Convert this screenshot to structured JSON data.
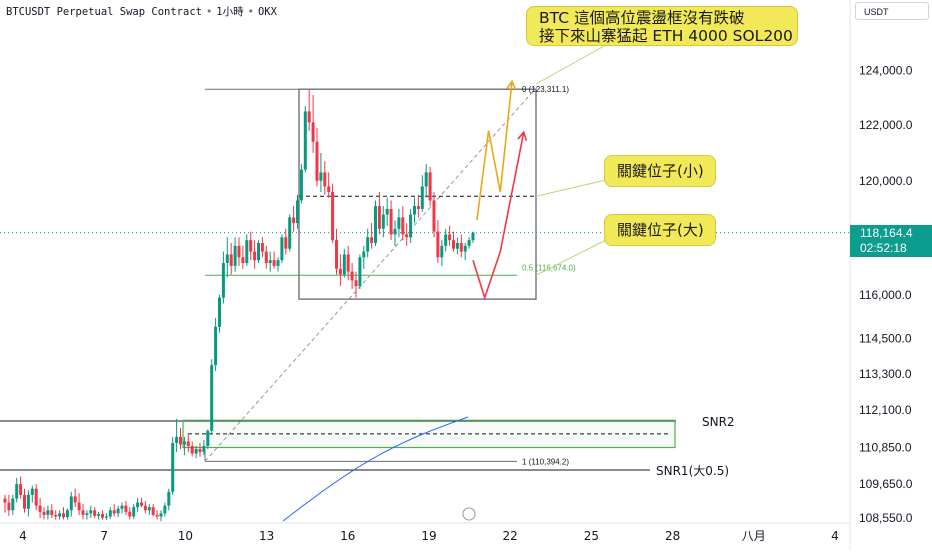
{
  "header": {
    "symbol": "BTCUSDT Perpetual Swap Contract",
    "timeframe": "1小時",
    "exchange": "OKX",
    "currency_unit": "USDT"
  },
  "last_price": {
    "value": "118,164.4",
    "countdown": "02:52:18",
    "color": "#0d9d8e"
  },
  "notes": {
    "main_line1": "BTC 這個高位震盪框沒有跌破",
    "main_line2": "接下來山寨猛起 ETH 4000 SOL200",
    "key_small": "關鍵位子(小)",
    "key_large": "關鍵位子(大)"
  },
  "levels": {
    "fib_0": "0 (123,311.1)",
    "fib_05": "0.5 (116,674.0)",
    "fib_1": "1 (110,394.2)",
    "snr2": "SNR2",
    "snr1": "SNR1(大0.5)"
  },
  "colors": {
    "up": "#089981",
    "down": "#f23645",
    "accent": "#2962ff",
    "note_bg": "#f2e959",
    "projection_yellow": "#e8a817",
    "projection_red": "#f23645"
  },
  "chart_data": {
    "type": "candlestick",
    "x_tick_labels": [
      "4",
      "7",
      "10",
      "13",
      "16",
      "19",
      "22",
      "25",
      "28",
      "八月",
      "4"
    ],
    "y_tick_labels": [
      "124,000.0",
      "122,000.0",
      "120,000.0",
      "116,000.0",
      "114,500.0",
      "113,300.0",
      "112,100.0",
      "110,850.0",
      "109,650.0",
      "108,550.0"
    ],
    "y_scale": "log",
    "ylim": [
      108300,
      125400
    ],
    "last_price": 118164.4,
    "fib_levels": [
      {
        "level": "0",
        "price": 123311.1
      },
      {
        "level": "0.5",
        "price": 116674.0
      },
      {
        "level": "1",
        "price": 110394.2
      }
    ],
    "key_levels": {
      "small": 119450,
      "large": 116674
    },
    "range_box": {
      "high": 123311,
      "low": 115850
    },
    "snr2_zone": {
      "high": 111750,
      "low": 110850,
      "mid": 111300
    },
    "snr1_level": 109900,
    "candles": [
      {
        "o": 109180,
        "h": 109300,
        "l": 108720,
        "c": 109050
      },
      {
        "o": 109050,
        "h": 109300,
        "l": 108620,
        "c": 108800
      },
      {
        "o": 108800,
        "h": 109300,
        "l": 108650,
        "c": 109180
      },
      {
        "o": 109180,
        "h": 109850,
        "l": 109050,
        "c": 109650
      },
      {
        "o": 109650,
        "h": 109900,
        "l": 109180,
        "c": 109300
      },
      {
        "o": 109300,
        "h": 109500,
        "l": 108720,
        "c": 108850
      },
      {
        "o": 108850,
        "h": 109450,
        "l": 108600,
        "c": 109300
      },
      {
        "o": 109300,
        "h": 109600,
        "l": 109050,
        "c": 109500
      },
      {
        "o": 109500,
        "h": 109650,
        "l": 108800,
        "c": 108950
      },
      {
        "o": 108950,
        "h": 109200,
        "l": 108550,
        "c": 108750
      },
      {
        "o": 108750,
        "h": 108900,
        "l": 108500,
        "c": 108650
      },
      {
        "o": 108650,
        "h": 108950,
        "l": 108500,
        "c": 108800
      },
      {
        "o": 108800,
        "h": 109000,
        "l": 108550,
        "c": 108650
      },
      {
        "o": 108650,
        "h": 108800,
        "l": 108500,
        "c": 108600
      },
      {
        "o": 108600,
        "h": 108800,
        "l": 108500,
        "c": 108700
      },
      {
        "o": 108700,
        "h": 108900,
        "l": 108500,
        "c": 108580
      },
      {
        "o": 108580,
        "h": 108850,
        "l": 108500,
        "c": 108800
      },
      {
        "o": 108800,
        "h": 109400,
        "l": 108600,
        "c": 109250
      },
      {
        "o": 109250,
        "h": 109500,
        "l": 108900,
        "c": 109050
      },
      {
        "o": 109050,
        "h": 109350,
        "l": 108650,
        "c": 108800
      },
      {
        "o": 108800,
        "h": 109000,
        "l": 108500,
        "c": 108650
      },
      {
        "o": 108650,
        "h": 108800,
        "l": 108500,
        "c": 108700
      },
      {
        "o": 108700,
        "h": 108950,
        "l": 108550,
        "c": 108800
      },
      {
        "o": 108800,
        "h": 108900,
        "l": 108550,
        "c": 108620
      },
      {
        "o": 108620,
        "h": 108750,
        "l": 108500,
        "c": 108680
      },
      {
        "o": 108680,
        "h": 108800,
        "l": 108500,
        "c": 108560
      },
      {
        "o": 108560,
        "h": 108700,
        "l": 108480,
        "c": 108600
      },
      {
        "o": 108600,
        "h": 108900,
        "l": 108520,
        "c": 108800
      },
      {
        "o": 108800,
        "h": 109000,
        "l": 108600,
        "c": 108700
      },
      {
        "o": 108700,
        "h": 108950,
        "l": 108580,
        "c": 108850
      },
      {
        "o": 108850,
        "h": 109050,
        "l": 108700,
        "c": 108950
      },
      {
        "o": 108950,
        "h": 109100,
        "l": 108650,
        "c": 108750
      },
      {
        "o": 108750,
        "h": 108900,
        "l": 108500,
        "c": 108600
      },
      {
        "o": 108600,
        "h": 109000,
        "l": 108520,
        "c": 108900
      },
      {
        "o": 108900,
        "h": 109200,
        "l": 108750,
        "c": 109050
      },
      {
        "o": 109050,
        "h": 109200,
        "l": 108900,
        "c": 108950
      },
      {
        "o": 108950,
        "h": 109100,
        "l": 108700,
        "c": 108800
      },
      {
        "o": 108800,
        "h": 109000,
        "l": 108650,
        "c": 108900
      },
      {
        "o": 108900,
        "h": 109000,
        "l": 108600,
        "c": 108650
      },
      {
        "o": 108650,
        "h": 108800,
        "l": 108500,
        "c": 108600
      },
      {
        "o": 108600,
        "h": 108800,
        "l": 108450,
        "c": 108700
      },
      {
        "o": 108700,
        "h": 109050,
        "l": 108600,
        "c": 108950
      },
      {
        "o": 108950,
        "h": 109500,
        "l": 108800,
        "c": 109400
      },
      {
        "o": 109400,
        "h": 111200,
        "l": 109300,
        "c": 111000
      },
      {
        "o": 111000,
        "h": 111800,
        "l": 110700,
        "c": 111200
      },
      {
        "o": 111200,
        "h": 111500,
        "l": 110800,
        "c": 110950
      },
      {
        "o": 110950,
        "h": 111200,
        "l": 110600,
        "c": 111050
      },
      {
        "o": 111050,
        "h": 111300,
        "l": 110700,
        "c": 110900
      },
      {
        "o": 110900,
        "h": 111050,
        "l": 110550,
        "c": 110650
      },
      {
        "o": 110650,
        "h": 110900,
        "l": 110500,
        "c": 110800
      },
      {
        "o": 110800,
        "h": 111000,
        "l": 110550,
        "c": 110700
      },
      {
        "o": 110700,
        "h": 111100,
        "l": 110600,
        "c": 110900
      },
      {
        "o": 110900,
        "h": 111450,
        "l": 110800,
        "c": 111400
      },
      {
        "o": 111400,
        "h": 113800,
        "l": 111300,
        "c": 113600
      },
      {
        "o": 113600,
        "h": 115200,
        "l": 113400,
        "c": 114900
      },
      {
        "o": 114900,
        "h": 116000,
        "l": 114700,
        "c": 115900
      },
      {
        "o": 115900,
        "h": 117500,
        "l": 115700,
        "c": 117100
      },
      {
        "o": 117100,
        "h": 118000,
        "l": 116600,
        "c": 117400
      },
      {
        "o": 117400,
        "h": 117800,
        "l": 116700,
        "c": 117000
      },
      {
        "o": 117000,
        "h": 118000,
        "l": 116800,
        "c": 117700
      },
      {
        "o": 117700,
        "h": 118000,
        "l": 117000,
        "c": 117300
      },
      {
        "o": 117300,
        "h": 117700,
        "l": 116900,
        "c": 117100
      },
      {
        "o": 117100,
        "h": 118100,
        "l": 117000,
        "c": 117900
      },
      {
        "o": 117900,
        "h": 118200,
        "l": 117200,
        "c": 117500
      },
      {
        "o": 117500,
        "h": 117900,
        "l": 116900,
        "c": 117200
      },
      {
        "o": 117200,
        "h": 117900,
        "l": 117100,
        "c": 117800
      },
      {
        "o": 117800,
        "h": 118000,
        "l": 117300,
        "c": 117500
      },
      {
        "o": 117500,
        "h": 117700,
        "l": 116900,
        "c": 117100
      },
      {
        "o": 117100,
        "h": 117500,
        "l": 116800,
        "c": 117200
      },
      {
        "o": 117200,
        "h": 117500,
        "l": 116900,
        "c": 117000
      },
      {
        "o": 117000,
        "h": 117300,
        "l": 116800,
        "c": 117200
      },
      {
        "o": 117200,
        "h": 118100,
        "l": 117100,
        "c": 118000
      },
      {
        "o": 118000,
        "h": 118300,
        "l": 117400,
        "c": 117600
      },
      {
        "o": 117600,
        "h": 118800,
        "l": 117500,
        "c": 118700
      },
      {
        "o": 118700,
        "h": 119100,
        "l": 118200,
        "c": 118500
      },
      {
        "o": 118500,
        "h": 119500,
        "l": 118300,
        "c": 119300
      },
      {
        "o": 119300,
        "h": 120600,
        "l": 119200,
        "c": 120400
      },
      {
        "o": 120400,
        "h": 122700,
        "l": 120300,
        "c": 122500
      },
      {
        "o": 122500,
        "h": 123300,
        "l": 121800,
        "c": 122100
      },
      {
        "o": 122100,
        "h": 123100,
        "l": 121000,
        "c": 121400
      },
      {
        "o": 121400,
        "h": 121900,
        "l": 119800,
        "c": 120000
      },
      {
        "o": 120000,
        "h": 121000,
        "l": 119600,
        "c": 120300
      },
      {
        "o": 120300,
        "h": 120700,
        "l": 119500,
        "c": 119800
      },
      {
        "o": 119800,
        "h": 120300,
        "l": 119400,
        "c": 119600
      },
      {
        "o": 119600,
        "h": 119900,
        "l": 117800,
        "c": 117900
      },
      {
        "o": 117900,
        "h": 118300,
        "l": 116700,
        "c": 116900
      },
      {
        "o": 116900,
        "h": 117400,
        "l": 116300,
        "c": 116700
      },
      {
        "o": 116700,
        "h": 117600,
        "l": 116600,
        "c": 117400
      },
      {
        "o": 117400,
        "h": 117700,
        "l": 116500,
        "c": 116800
      },
      {
        "o": 116800,
        "h": 117100,
        "l": 116200,
        "c": 116500
      },
      {
        "o": 116500,
        "h": 116800,
        "l": 115900,
        "c": 116300
      },
      {
        "o": 116300,
        "h": 117400,
        "l": 116200,
        "c": 117300
      },
      {
        "o": 117300,
        "h": 117700,
        "l": 116900,
        "c": 117500
      },
      {
        "o": 117500,
        "h": 118300,
        "l": 117300,
        "c": 118000
      },
      {
        "o": 118000,
        "h": 118500,
        "l": 117600,
        "c": 117800
      },
      {
        "o": 117800,
        "h": 119300,
        "l": 117700,
        "c": 119100
      },
      {
        "o": 119100,
        "h": 119600,
        "l": 118100,
        "c": 118300
      },
      {
        "o": 118300,
        "h": 119100,
        "l": 118000,
        "c": 118800
      },
      {
        "o": 118800,
        "h": 119400,
        "l": 118400,
        "c": 119000
      },
      {
        "o": 119000,
        "h": 119300,
        "l": 117900,
        "c": 118100
      },
      {
        "o": 118100,
        "h": 118600,
        "l": 117700,
        "c": 118300
      },
      {
        "o": 118300,
        "h": 119000,
        "l": 118000,
        "c": 118700
      },
      {
        "o": 118700,
        "h": 119100,
        "l": 117900,
        "c": 118100
      },
      {
        "o": 118100,
        "h": 118500,
        "l": 117700,
        "c": 118000
      },
      {
        "o": 118000,
        "h": 119000,
        "l": 117800,
        "c": 118800
      },
      {
        "o": 118800,
        "h": 119400,
        "l": 118500,
        "c": 119100
      },
      {
        "o": 119100,
        "h": 119500,
        "l": 118700,
        "c": 119000
      },
      {
        "o": 119000,
        "h": 120200,
        "l": 118900,
        "c": 119800
      },
      {
        "o": 119800,
        "h": 120600,
        "l": 119400,
        "c": 120300
      },
      {
        "o": 120300,
        "h": 120500,
        "l": 119100,
        "c": 119300
      },
      {
        "o": 119300,
        "h": 119600,
        "l": 118000,
        "c": 118200
      },
      {
        "o": 118200,
        "h": 118600,
        "l": 117100,
        "c": 117300
      },
      {
        "o": 117300,
        "h": 117900,
        "l": 117000,
        "c": 117700
      },
      {
        "o": 117700,
        "h": 118300,
        "l": 117500,
        "c": 118100
      },
      {
        "o": 118100,
        "h": 118400,
        "l": 117700,
        "c": 117900
      },
      {
        "o": 117900,
        "h": 118200,
        "l": 117500,
        "c": 117600
      },
      {
        "o": 117600,
        "h": 118000,
        "l": 117400,
        "c": 117800
      },
      {
        "o": 117800,
        "h": 118100,
        "l": 117300,
        "c": 117500
      },
      {
        "o": 117500,
        "h": 117800,
        "l": 117200,
        "c": 117700
      },
      {
        "o": 117700,
        "h": 118000,
        "l": 117600,
        "c": 117900
      },
      {
        "o": 117900,
        "h": 118200,
        "l": 117800,
        "c": 118164
      }
    ],
    "projections": [
      {
        "name": "yellow",
        "points": [
          [
            121,
            118600
          ],
          [
            124,
            121800
          ],
          [
            127,
            119600
          ],
          [
            130,
            123600
          ]
        ]
      },
      {
        "name": "red",
        "points": [
          [
            120,
            117200
          ],
          [
            123,
            115900
          ],
          [
            127,
            117500
          ],
          [
            133,
            121750
          ]
        ]
      }
    ]
  }
}
